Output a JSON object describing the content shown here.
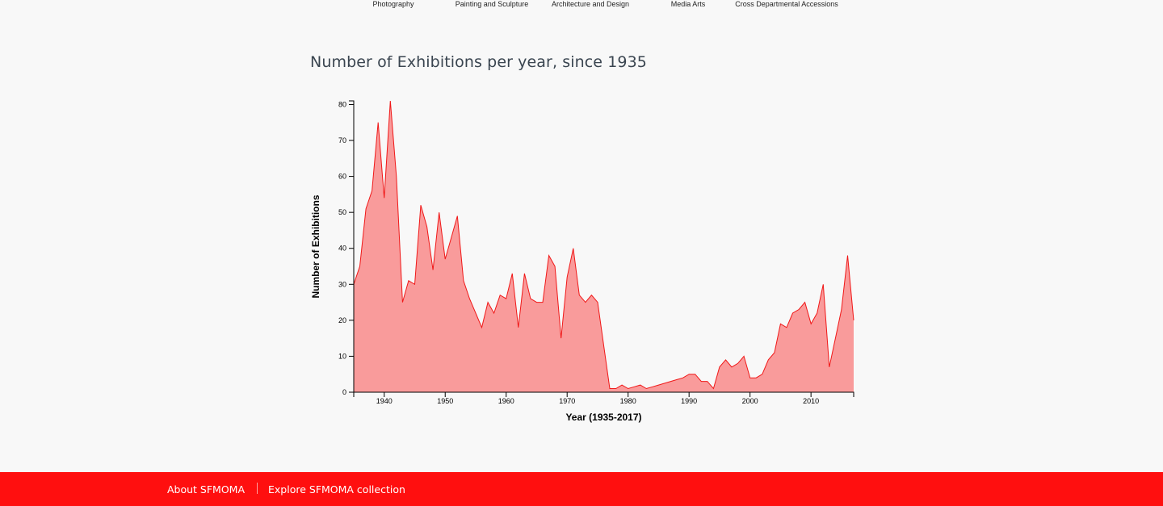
{
  "nav": {
    "tabs": [
      {
        "label": "Photography"
      },
      {
        "label": "Painting and Sculpture"
      },
      {
        "label": "Architecture and Design"
      },
      {
        "label": "Media Arts"
      },
      {
        "label": "Cross Departmental Accessions"
      }
    ]
  },
  "colors": {
    "area_fill": "#f99b9b",
    "area_stroke": "#f01818",
    "footer_bg": "#ff0f0f",
    "axis": "#000000"
  },
  "footer": {
    "about_label": "About SFMOMA",
    "explore_label": "Explore SFMOMA collection"
  },
  "chart_data": {
    "type": "area",
    "title": "Number of Exhibitions per year, since 1935",
    "xlabel": "Year (1935-2017)",
    "ylabel": "Number of Exhibitions",
    "xlim": [
      1935,
      2017
    ],
    "ylim": [
      0,
      81
    ],
    "grid": false,
    "xticks": [
      1940,
      1950,
      1960,
      1970,
      1980,
      1990,
      2000,
      2010
    ],
    "yticks": [
      0,
      10,
      20,
      30,
      40,
      50,
      60,
      70,
      80
    ],
    "series": [
      {
        "name": "Exhibitions",
        "x": [
          1935,
          1936,
          1937,
          1938,
          1939,
          1940,
          1941,
          1942,
          1943,
          1944,
          1945,
          1946,
          1947,
          1948,
          1949,
          1950,
          1951,
          1952,
          1953,
          1954,
          1955,
          1956,
          1957,
          1958,
          1959,
          1960,
          1961,
          1962,
          1963,
          1964,
          1965,
          1966,
          1967,
          1968,
          1969,
          1970,
          1971,
          1972,
          1973,
          1974,
          1975,
          1976,
          1977,
          1978,
          1979,
          1980,
          1981,
          1982,
          1983,
          1984,
          1985,
          1986,
          1987,
          1988,
          1989,
          1990,
          1991,
          1992,
          1993,
          1994,
          1995,
          1996,
          1997,
          1998,
          1999,
          2000,
          2001,
          2002,
          2003,
          2004,
          2005,
          2006,
          2007,
          2008,
          2009,
          2010,
          2011,
          2012,
          2013,
          2014,
          2015,
          2016,
          2017
        ],
        "values": [
          30,
          35,
          51,
          56,
          75,
          54,
          81,
          60,
          25,
          31,
          30,
          52,
          46,
          34,
          50,
          37,
          43,
          49,
          31,
          26,
          22,
          18,
          25,
          22,
          27,
          26,
          33,
          18,
          33,
          26,
          25,
          25,
          38,
          35,
          15,
          32,
          40,
          27,
          25,
          27,
          25,
          13,
          1,
          1,
          2,
          1,
          1.5,
          2,
          1,
          1.5,
          2,
          2.5,
          3,
          3.5,
          4,
          5,
          5,
          3,
          3,
          1,
          7,
          9,
          7,
          8,
          10,
          4,
          4,
          5,
          9,
          11,
          19,
          18,
          22,
          23,
          25,
          19,
          22,
          30,
          7,
          15,
          23,
          38,
          20
        ]
      }
    ]
  }
}
